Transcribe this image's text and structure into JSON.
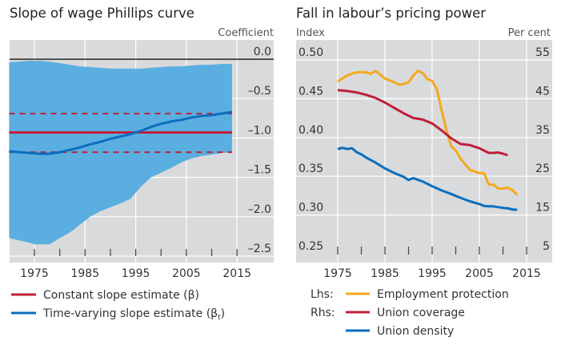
{
  "chart_data": [
    {
      "type": "line",
      "title": "Slope of wage Phillips curve",
      "ylabel": "Coefficient",
      "ylabel_position": "right",
      "xlabel": "",
      "xlim": [
        1970,
        2020
      ],
      "ylim": [
        -2.5,
        0.0
      ],
      "x_ticks": [
        "1975",
        "1985",
        "1995",
        "2005",
        "2015"
      ],
      "y_ticks": [
        "0.0",
        "–0.5",
        "–1.0",
        "–1.5",
        "–2.0",
        "–2.5"
      ],
      "y_tick_values": [
        0.0,
        -0.5,
        -1.0,
        -1.5,
        -2.0,
        -2.5
      ],
      "grid": true,
      "zero_line": true,
      "legend": [
        {
          "label": "Constant slope estimate (β)",
          "color": "#c0203a"
        },
        {
          "label": "Time-varying slope estimate (β",
          "subscript": "t",
          "suffix": ")",
          "color": "#0a6ebd"
        }
      ],
      "legend_position": "bottom-left",
      "band": {
        "name": "Confidence band",
        "color": "#5aaee0",
        "x": [
          1970,
          1972,
          1974,
          1975,
          1976,
          1978,
          1980,
          1982,
          1984,
          1986,
          1988,
          1990,
          1992,
          1994,
          1996,
          1998,
          2000,
          2002,
          2004,
          2006,
          2008,
          2010,
          2012,
          2014
        ],
        "upper": [
          -0.04,
          -0.03,
          -0.02,
          -0.02,
          -0.02,
          -0.03,
          -0.05,
          -0.07,
          -0.09,
          -0.1,
          -0.11,
          -0.12,
          -0.12,
          -0.12,
          -0.12,
          -0.11,
          -0.1,
          -0.09,
          -0.09,
          -0.08,
          -0.07,
          -0.07,
          -0.06,
          -0.06
        ],
        "lower": [
          -2.27,
          -2.3,
          -2.33,
          -2.35,
          -2.35,
          -2.35,
          -2.27,
          -2.2,
          -2.1,
          -2.0,
          -1.93,
          -1.88,
          -1.83,
          -1.77,
          -1.62,
          -1.5,
          -1.44,
          -1.38,
          -1.31,
          -1.26,
          -1.23,
          -1.21,
          -1.19,
          -1.18
        ]
      },
      "series": [
        {
          "name": "Constant slope estimate (β)",
          "color": "#c0203a",
          "style": "solid",
          "x": [
            1970,
            2014
          ],
          "values": [
            -0.93,
            -0.93
          ]
        },
        {
          "name": "Constant slope upper bound",
          "color": "#c0203a",
          "style": "dashed",
          "x": [
            1970,
            2014
          ],
          "values": [
            -0.69,
            -0.69
          ]
        },
        {
          "name": "Constant slope lower bound",
          "color": "#c0203a",
          "style": "dashed",
          "x": [
            1970,
            2014
          ],
          "values": [
            -1.18,
            -1.18
          ]
        },
        {
          "name": "Time-varying slope estimate (βt)",
          "color": "#0a6ebd",
          "style": "solid",
          "x": [
            1970,
            1972,
            1974,
            1976,
            1978,
            1980,
            1982,
            1984,
            1986,
            1988,
            1990,
            1992,
            1994,
            1996,
            1998,
            2000,
            2002,
            2004,
            2006,
            2008,
            2010,
            2012,
            2014
          ],
          "values": [
            -1.17,
            -1.18,
            -1.19,
            -1.2,
            -1.2,
            -1.18,
            -1.15,
            -1.12,
            -1.08,
            -1.05,
            -1.01,
            -0.98,
            -0.95,
            -0.91,
            -0.86,
            -0.82,
            -0.79,
            -0.77,
            -0.74,
            -0.72,
            -0.71,
            -0.69,
            -0.67
          ]
        }
      ]
    },
    {
      "type": "line",
      "title": "Fall in labour’s pricing power",
      "ylabel": "Index",
      "ylabel_right": "Per cent",
      "xlabel": "",
      "xlim": [
        1966,
        2020
      ],
      "ylim": [
        0.25,
        0.5
      ],
      "ylim_right": [
        5,
        55
      ],
      "x_ticks": [
        "1975",
        "1985",
        "1995",
        "2005",
        "2015"
      ],
      "y_ticks": [
        "0.50",
        "0.45",
        "0.40",
        "0.35",
        "0.30",
        "0.25"
      ],
      "y_tick_values": [
        0.5,
        0.45,
        0.4,
        0.35,
        0.3,
        0.25
      ],
      "y_ticks_right": [
        "55",
        "45",
        "35",
        "25",
        "15",
        "5"
      ],
      "grid": true,
      "legend_prefixes": [
        "Lhs:",
        "Rhs:",
        ""
      ],
      "legend": [
        {
          "prefix": "Lhs:",
          "label": "Employment protection",
          "color": "#f5a81c"
        },
        {
          "prefix": "Rhs:",
          "label": "Union coverage",
          "color": "#c0203a"
        },
        {
          "prefix": "",
          "label": "Union density",
          "color": "#0a6ebd"
        }
      ],
      "legend_position": "bottom-left",
      "series": [
        {
          "name": "Employment protection",
          "axis": "left",
          "color": "#f5a81c",
          "x": [
            1975,
            1977,
            1979,
            1981,
            1982,
            1983,
            1985,
            1987,
            1988,
            1989,
            1990,
            1991,
            1992,
            1993,
            1994,
            1995,
            1996,
            1997,
            1998,
            1999,
            2000,
            2001,
            2002,
            2003,
            2004,
            2005,
            2006,
            2007,
            2008,
            2009,
            2010,
            2011,
            2012,
            2013
          ],
          "values": [
            0.467,
            0.475,
            0.479,
            0.479,
            0.477,
            0.481,
            0.471,
            0.466,
            0.463,
            0.464,
            0.466,
            0.475,
            0.481,
            0.478,
            0.47,
            0.468,
            0.457,
            0.43,
            0.405,
            0.384,
            0.378,
            0.368,
            0.36,
            0.353,
            0.351,
            0.349,
            0.349,
            0.334,
            0.334,
            0.329,
            0.329,
            0.33,
            0.327,
            0.321
          ]
        },
        {
          "name": "Union coverage",
          "axis": "right",
          "color": "#c0203a",
          "x": [
            1975,
            1977,
            1979,
            1981,
            1983,
            1985,
            1987,
            1989,
            1991,
            1993,
            1995,
            1997,
            1999,
            2001,
            2003,
            2005,
            2006,
            2007,
            2008,
            2009,
            2010,
            2011
          ],
          "values_right": [
            46.2,
            46.0,
            45.6,
            45.0,
            44.2,
            43.0,
            41.6,
            40.2,
            39.0,
            38.6,
            37.6,
            35.8,
            33.8,
            32.3,
            32.0,
            31.2,
            30.6,
            30.0,
            30.0,
            30.1,
            29.8,
            29.4
          ]
        },
        {
          "name": "Union density",
          "axis": "right",
          "color": "#0a6ebd",
          "x": [
            1975,
            1976,
            1977,
            1978,
            1979,
            1980,
            1981,
            1983,
            1985,
            1987,
            1989,
            1990,
            1991,
            1993,
            1995,
            1997,
            1999,
            2001,
            2003,
            2005,
            2006,
            2007,
            2008,
            2009,
            2010,
            2011,
            2012,
            2013
          ],
          "values_right": [
            31.0,
            31.3,
            31.0,
            31.2,
            30.2,
            29.6,
            28.8,
            27.5,
            26.0,
            24.8,
            23.8,
            23.0,
            23.5,
            22.6,
            21.4,
            20.3,
            19.4,
            18.4,
            17.5,
            16.8,
            16.3,
            16.2,
            16.2,
            16.0,
            15.8,
            15.7,
            15.4,
            15.3
          ]
        }
      ]
    }
  ]
}
